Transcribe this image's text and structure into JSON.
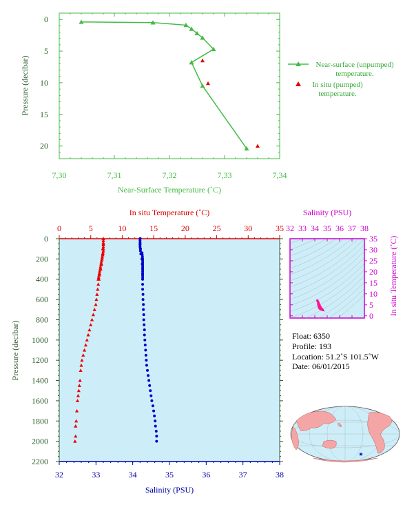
{
  "chart_data": [
    {
      "type": "line",
      "xlabel": "Near-Surface Temperature (˚C)",
      "ylabel": "Pressure (decibar)",
      "xlim": [
        7.3,
        7.34
      ],
      "ylim": [
        22,
        -1
      ],
      "x_ticks": [
        "7,30",
        "7,31",
        "7,32",
        "7,33",
        "7,34"
      ],
      "y_ticks": [
        "0",
        "5",
        "10",
        "15",
        "20"
      ],
      "legend_placement": "right",
      "series": [
        {
          "name": "Near-surface (unpumped) temperature.",
          "color": "#44bb44",
          "marker": "triangle",
          "points": [
            [
              7.304,
              0.4
            ],
            [
              7.317,
              0.5
            ],
            [
              7.323,
              0.9
            ],
            [
              7.324,
              1.5
            ],
            [
              7.325,
              2.2
            ],
            [
              7.326,
              2.9
            ],
            [
              7.328,
              4.7
            ],
            [
              7.324,
              6.8
            ],
            [
              7.326,
              10.5
            ],
            [
              7.334,
              20.4
            ]
          ]
        },
        {
          "name": "In situ (pumped) temperature.",
          "color": "#dd0000",
          "marker": "triangle",
          "points": [
            [
              7.326,
              6.5
            ],
            [
              7.327,
              10.1
            ],
            [
              7.336,
              20.0
            ]
          ]
        }
      ]
    },
    {
      "type": "scatter",
      "top_xlabel": "In situ Temperature (˚C)",
      "bottom_xlabel": "Salinity (PSU)",
      "ylabel": "Pressure (decibar)",
      "temperature_xlim": [
        0,
        35
      ],
      "salinity_xlim": [
        32,
        38
      ],
      "ylim": [
        2200,
        0
      ],
      "temperature_ticks": [
        "0",
        "5",
        "10",
        "15",
        "20",
        "25",
        "30",
        "35"
      ],
      "salinity_ticks": [
        "32",
        "33",
        "34",
        "35",
        "36",
        "37",
        "38"
      ],
      "y_ticks": [
        "0",
        "200",
        "400",
        "600",
        "800",
        "1000",
        "1200",
        "1400",
        "1600",
        "1800",
        "2000",
        "2200"
      ],
      "background": "#cdeef8",
      "series": [
        {
          "name": "In situ Temperature",
          "color": "#ee0000",
          "marker": "triangle",
          "x": [
            7.0,
            7.0,
            6.9,
            6.9,
            6.8,
            6.7,
            6.6,
            6.4,
            6.3,
            6.2,
            6.1,
            6.0,
            5.9,
            5.8,
            5.6,
            5.4,
            5.2,
            5.0,
            4.8,
            4.6,
            4.4,
            4.2,
            4.0,
            3.8,
            3.6,
            3.5,
            3.4,
            3.3,
            3.2,
            3.1,
            3.0,
            2.9,
            2.8,
            2.7,
            2.6,
            2.6,
            2.5
          ],
          "y": [
            0,
            50,
            100,
            150,
            200,
            250,
            300,
            350,
            400,
            450,
            500,
            550,
            600,
            650,
            700,
            750,
            800,
            850,
            900,
            950,
            1000,
            1050,
            1100,
            1150,
            1200,
            1250,
            1300,
            1400,
            1450,
            1500,
            1550,
            1600,
            1700,
            1800,
            1850,
            1950,
            2000
          ]
        },
        {
          "name": "Salinity",
          "color": "#0000cc",
          "marker": "circle",
          "x": [
            34.2,
            34.2,
            34.21,
            34.22,
            34.25,
            34.26,
            34.27,
            34.27,
            34.27,
            34.27,
            34.27,
            34.28,
            34.28,
            34.29,
            34.29,
            34.3,
            34.3,
            34.31,
            34.32,
            34.32,
            34.33,
            34.34,
            34.35,
            34.36,
            34.37,
            34.38,
            34.4,
            34.42,
            34.44,
            34.46,
            34.48,
            34.5,
            34.52,
            34.55,
            34.57,
            34.59,
            34.61,
            34.62,
            34.64,
            34.65,
            34.65
          ],
          "y": [
            0,
            50,
            100,
            150,
            200,
            250,
            300,
            350,
            400,
            450,
            500,
            550,
            600,
            650,
            700,
            750,
            800,
            850,
            900,
            950,
            1000,
            1050,
            1100,
            1150,
            1200,
            1250,
            1300,
            1350,
            1400,
            1450,
            1500,
            1550,
            1600,
            1650,
            1700,
            1750,
            1800,
            1850,
            1900,
            1950,
            2000
          ]
        }
      ]
    },
    {
      "type": "scatter",
      "top_xlabel": "Salinity (PSU)",
      "ylabel": "In situ Temperature (˚C)",
      "xlim": [
        32,
        38
      ],
      "ylim": [
        -1,
        35
      ],
      "x_ticks": [
        "32",
        "33",
        "34",
        "35",
        "36",
        "37",
        "38"
      ],
      "y_ticks": [
        "0",
        "5",
        "10",
        "15",
        "20",
        "25",
        "30",
        "35"
      ],
      "grid": false,
      "background": "#cdeef8",
      "series": [
        {
          "name": "T-S",
          "color": "#ff1493",
          "points": [
            [
              34.2,
              7.0
            ],
            [
              34.22,
              6.8
            ],
            [
              34.26,
              6.4
            ],
            [
              34.27,
              6.0
            ],
            [
              34.27,
              5.6
            ],
            [
              34.28,
              5.2
            ],
            [
              34.29,
              4.8
            ],
            [
              34.31,
              4.4
            ],
            [
              34.33,
              4.0
            ],
            [
              34.35,
              3.7
            ],
            [
              34.38,
              3.4
            ],
            [
              34.42,
              3.2
            ],
            [
              34.46,
              3.0
            ],
            [
              34.5,
              2.9
            ],
            [
              34.55,
              2.8
            ],
            [
              34.6,
              2.7
            ],
            [
              34.65,
              2.6
            ],
            [
              34.62,
              2.9
            ],
            [
              34.55,
              3.3
            ],
            [
              34.45,
              4.2
            ],
            [
              34.38,
              5.0
            ],
            [
              34.3,
              6.0
            ]
          ]
        }
      ]
    }
  ],
  "float_info": {
    "float_label": "Float:",
    "float_value": "6350",
    "profile_label": "Profile:",
    "profile_value": "193",
    "location_label": "Location:",
    "location_value": "51.2˚S  101.5˚W",
    "date_label": "Date:",
    "date_value": "06/01/2015"
  },
  "colors": {
    "green": "#44bb44",
    "dark_green": "#2e5e2e",
    "red": "#dd0000",
    "blue": "#0000aa",
    "magenta": "#cc00cc",
    "plot_bg": "#cdeef8",
    "land": "#f4a6a6"
  }
}
